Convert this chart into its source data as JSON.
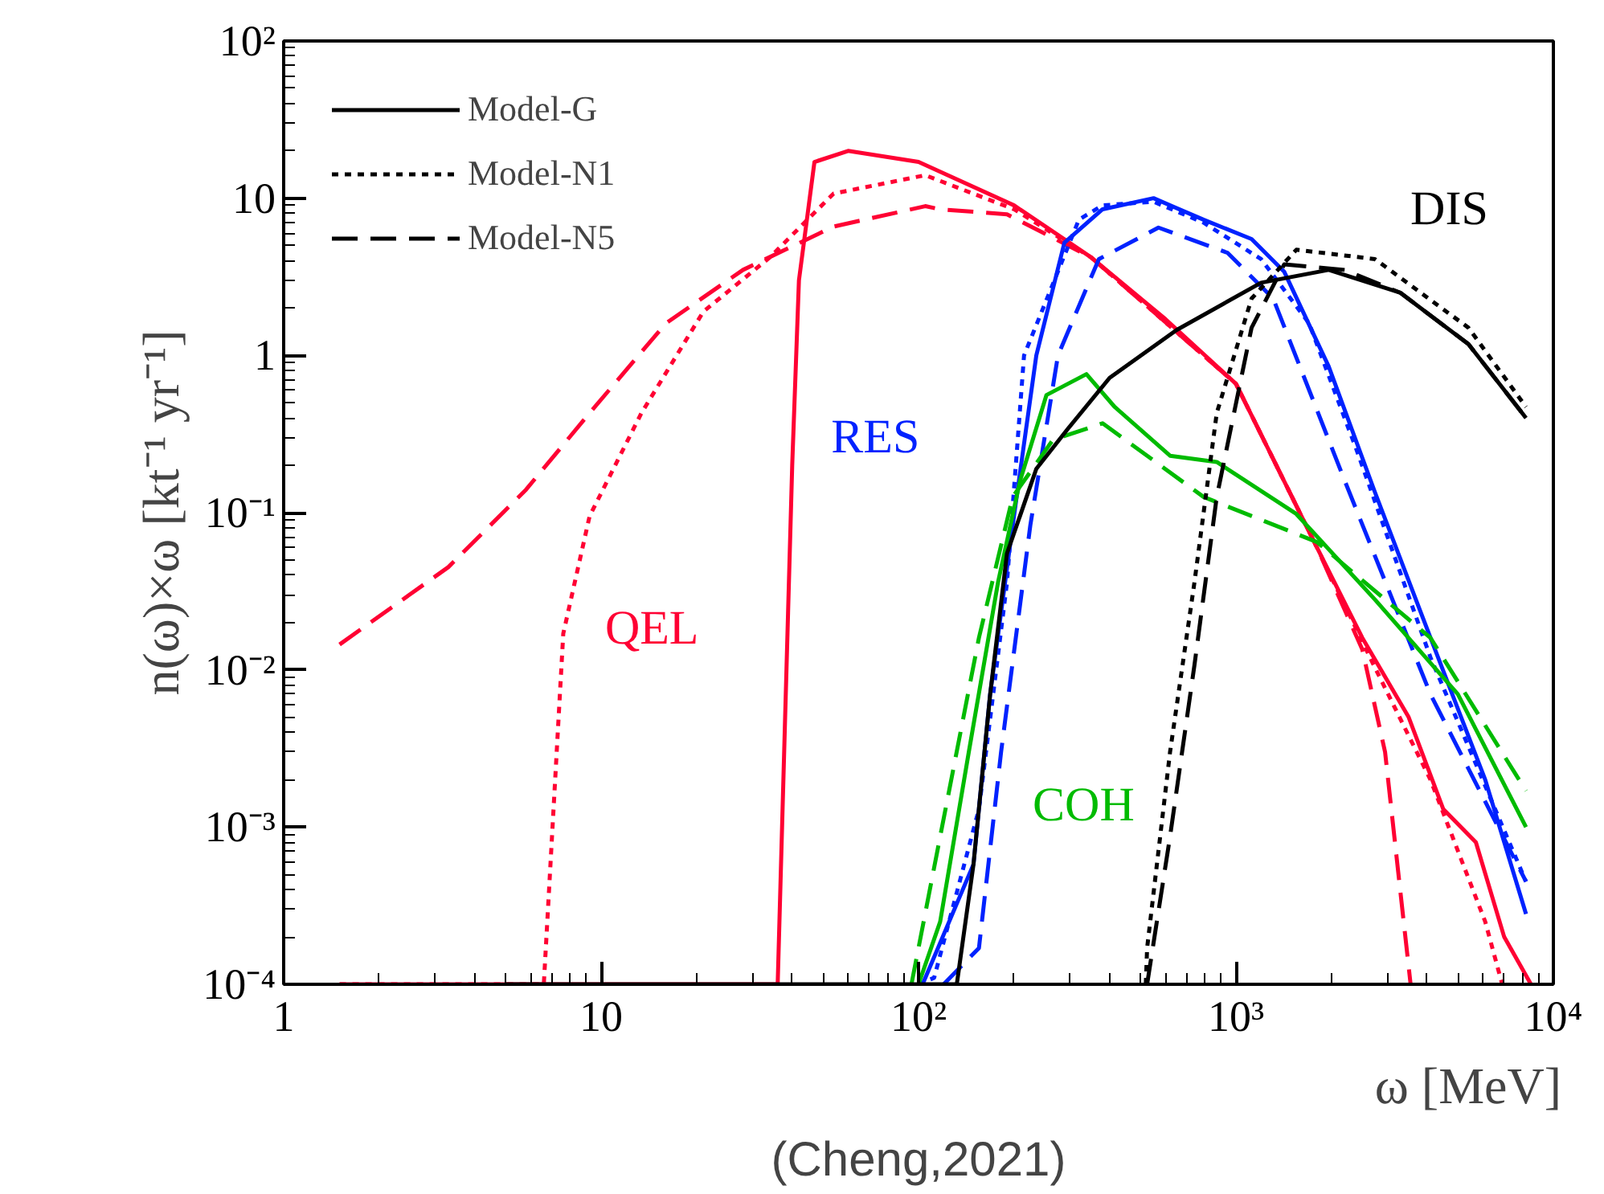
{
  "chart_data": {
    "type": "line",
    "xlabel": "ω [MeV]",
    "ylabel": "n(ω)×ω [kt⁻¹ yr⁻¹]",
    "log": "xy",
    "legend": "top left",
    "grid": false,
    "xlim": [
      1,
      10000
    ],
    "ylim": [
      0.0001,
      100
    ],
    "xticks": [
      1,
      10,
      {
        "value": 100,
        "label": "10²"
      },
      {
        "value": 1000,
        "label": "10³"
      },
      {
        "value": 10000,
        "label": "10⁴"
      }
    ],
    "yticks": [
      {
        "value": 0.0001,
        "label": "10⁻⁴"
      },
      {
        "value": 0.001,
        "label": "10⁻³"
      },
      {
        "value": 0.01,
        "label": "10⁻²"
      },
      {
        "value": 0.1,
        "label": "10⁻¹"
      },
      1,
      10,
      {
        "value": 100,
        "label": "10²"
      }
    ],
    "annotations": [
      "QEL",
      "RES",
      "COH",
      "DIS",
      "(Cheng,2021)"
    ],
    "series": [
      {
        "color": "#ff0033",
        "line_style": "solid",
        "x": [
          1.5,
          36,
          38,
          40,
          42,
          47,
          60,
          100,
          200,
          350,
          600,
          1000,
          1800,
          2500,
          3500,
          4500,
          5700,
          7000,
          8500
        ],
        "values": [
          0.0001,
          0.0001,
          0.005,
          0.2,
          3,
          17,
          20,
          17,
          9,
          4.2,
          1.7,
          0.66,
          0.06,
          0.016,
          0.005,
          0.0013,
          0.0008,
          0.0002,
          0.0001
        ]
      },
      {
        "color": "#ff0033",
        "line_style": "dotted",
        "x": [
          1.5,
          6.6,
          7.6,
          9.2,
          13.4,
          21,
          34,
          54,
          105,
          200,
          350,
          1000,
          1800,
          2700,
          4100,
          6100,
          6900
        ],
        "values": [
          0.0001,
          0.0001,
          0.017,
          0.095,
          0.43,
          1.9,
          4.2,
          10.7,
          14,
          8.5,
          4.2,
          0.66,
          0.06,
          0.011,
          0.002,
          0.00025,
          0.0001
        ]
      },
      {
        "color": "#ff0033",
        "line_style": "dashed",
        "x": [
          1.5,
          3.3,
          5.8,
          9.2,
          16,
          28,
          54,
          105,
          117,
          190,
          350,
          1000,
          1800,
          2500,
          2950,
          3300,
          3550
        ],
        "values": [
          0.0145,
          0.045,
          0.14,
          0.43,
          1.6,
          3.5,
          6.6,
          8.9,
          8.5,
          7.9,
          4.2,
          0.66,
          0.06,
          0.0135,
          0.003,
          0.00038,
          0.0001
        ]
      },
      {
        "color": "#0022ff",
        "line_style": "solid",
        "x": [
          103,
          149,
          168,
          198,
          235,
          288,
          380,
          550,
          790,
          1120,
          1420,
          1960,
          2740,
          4100,
          6100,
          8200
        ],
        "values": [
          0.0001,
          0.00058,
          0.0069,
          0.083,
          1,
          5.2,
          8.5,
          10,
          7.3,
          5.5,
          3.4,
          0.85,
          0.135,
          0.016,
          0.002,
          0.00028
        ]
      },
      {
        "color": "#0022ff",
        "line_style": "dotted",
        "x": [
          100,
          112,
          155,
          190,
          215,
          320,
          380,
          550,
          790,
          1200,
          1700,
          2400,
          4100,
          8200
        ],
        "values": [
          0.0001,
          0.00011,
          0.0013,
          0.036,
          1,
          7.3,
          9,
          9.5,
          7,
          4.1,
          1.6,
          0.25,
          0.012,
          0.00045
        ]
      },
      {
        "color": "#0022ff",
        "line_style": "dashed",
        "x": [
          120,
          155,
          182,
          225,
          275,
          370,
          570,
          940,
          1310,
          2200,
          4100,
          8200
        ],
        "values": [
          0.0001,
          0.00017,
          0.003,
          0.083,
          1,
          4.1,
          6.5,
          4.5,
          2.3,
          0.16,
          0.007,
          0.00045
        ]
      },
      {
        "color": "#00bb00",
        "line_style": "solid",
        "x": [
          100,
          117,
          144,
          178,
          209,
          253,
          338,
          415,
          620,
          870,
          1550,
          2740,
          5000,
          8200
        ],
        "values": [
          0.0001,
          0.00025,
          0.003,
          0.036,
          0.16,
          0.56,
          0.76,
          0.47,
          0.23,
          0.21,
          0.098,
          0.028,
          0.007,
          0.001
        ]
      },
      {
        "color": "#00bb00",
        "line_style": "dashed",
        "x": [
          95,
          117,
          155,
          198,
          265,
          380,
          790,
          1800,
          4100,
          8200
        ],
        "values": [
          0.0001,
          0.00087,
          0.016,
          0.126,
          0.29,
          0.37,
          0.126,
          0.065,
          0.016,
          0.0017
        ]
      },
      {
        "name": "Model-G",
        "color": "#000000",
        "line_style": "solid",
        "x": [
          5,
          132,
          149,
          168,
          190,
          235,
          295,
          400,
          650,
          1200,
          1960,
          3300,
          5400,
          8200
        ],
        "values": [
          0.0001,
          0.0001,
          0.00058,
          0.0069,
          0.055,
          0.19,
          0.34,
          0.72,
          1.45,
          2.9,
          3.5,
          2.5,
          1.18,
          0.4
        ]
      },
      {
        "name": "Model-N1",
        "color": "#000000",
        "line_style": "dotted",
        "x": [
          520,
          525,
          620,
          740,
          870,
          1120,
          1550,
          2740,
          5400,
          8200
        ],
        "values": [
          0.0001,
          0.00017,
          0.003,
          0.036,
          0.43,
          2.3,
          4.7,
          4.1,
          1.5,
          0.47
        ]
      },
      {
        "name": "Model-N5",
        "color": "#000000",
        "line_style": "dashed",
        "x": [
          525,
          620,
          740,
          870,
          1120,
          1420,
          2200,
          3300,
          5400,
          8200
        ],
        "values": [
          0.0001,
          0.00087,
          0.0107,
          0.126,
          1.5,
          3.8,
          3.5,
          2.5,
          1.18,
          0.4
        ]
      }
    ]
  }
}
